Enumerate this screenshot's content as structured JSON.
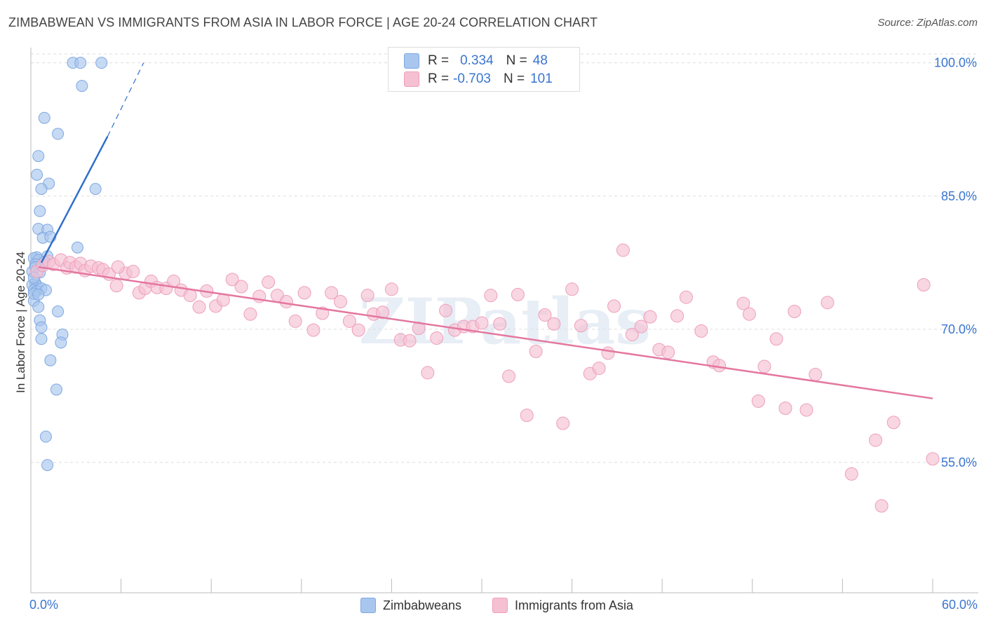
{
  "title": "ZIMBABWEAN VS IMMIGRANTS FROM ASIA IN LABOR FORCE | AGE 20-24 CORRELATION CHART",
  "source": "Source: ZipAtlas.com",
  "legend": {
    "rows": [
      {
        "r_label": "R =",
        "r_value": "0.334",
        "n_label": "N =",
        "n_value": "48"
      },
      {
        "r_label": "R =",
        "r_value": "-0.703",
        "n_label": "N =",
        "n_value": "101"
      }
    ]
  },
  "bottom_legend": [
    "Zimbabweans",
    "Immigrants from Asia"
  ],
  "x_axis_labels": {
    "min": "0.0%",
    "max": "60.0%"
  },
  "colors": {
    "blue_fill": "#a9c6ee",
    "blue_stroke": "#7ea8e0",
    "blue_line": "#2f6fcc",
    "pink_fill": "#f5c0d2",
    "pink_stroke": "#ee9fba",
    "pink_line": "#e4779f",
    "tick_label": "#3a75d0",
    "grid": "#dddddd"
  },
  "chart_data": {
    "type": "scatter",
    "xlabel": "",
    "ylabel": "In Labor Force | Age 20-24",
    "xlim": [
      0,
      60
    ],
    "ylim": [
      40,
      101
    ],
    "y_ticks": [
      {
        "value": 100,
        "label": "100.0%"
      },
      {
        "value": 85,
        "label": "85.0%"
      },
      {
        "value": 70,
        "label": "70.0%"
      },
      {
        "value": 55,
        "label": "55.0%"
      }
    ],
    "grid": true,
    "watermark": "ZIPatlas",
    "series": [
      {
        "name": "Zimbabweans",
        "r": 0.334,
        "n": 48,
        "trend": {
          "x1": 0.7,
          "y1": 77.5,
          "x2": 5.1,
          "y2": 91.7,
          "dash_to_x": 7.5,
          "dash_to_y": 100
        },
        "points": [
          [
            2.8,
            100
          ],
          [
            3.3,
            100
          ],
          [
            4.7,
            100
          ],
          [
            3.4,
            97.4
          ],
          [
            0.9,
            93.8
          ],
          [
            1.8,
            92
          ],
          [
            0.5,
            89.5
          ],
          [
            0.4,
            87.4
          ],
          [
            1.2,
            86.4
          ],
          [
            0.7,
            85.8
          ],
          [
            4.3,
            85.8
          ],
          [
            0.6,
            83.3
          ],
          [
            0.5,
            81.3
          ],
          [
            1.1,
            81.2
          ],
          [
            0.8,
            80.3
          ],
          [
            1.3,
            80.4
          ],
          [
            3.1,
            79.2
          ],
          [
            0.4,
            78.1
          ],
          [
            1.1,
            78.2
          ],
          [
            0.2,
            78.0
          ],
          [
            0.5,
            77.8
          ],
          [
            0.9,
            77.6
          ],
          [
            0.3,
            77.3
          ],
          [
            0.1,
            76.5
          ],
          [
            0.3,
            75.2
          ],
          [
            0.4,
            74.9
          ],
          [
            0.1,
            75.0
          ],
          [
            0.2,
            74.4
          ],
          [
            0.4,
            74.3
          ],
          [
            0.7,
            74.6
          ],
          [
            1.0,
            74.4
          ],
          [
            0.2,
            73.2
          ],
          [
            0.5,
            72.5
          ],
          [
            1.8,
            72.0
          ],
          [
            0.6,
            71.0
          ],
          [
            0.7,
            70.2
          ],
          [
            0.7,
            68.9
          ],
          [
            2.1,
            69.4
          ],
          [
            2.0,
            68.5
          ],
          [
            1.3,
            66.5
          ],
          [
            1.7,
            63.2
          ],
          [
            1.0,
            57.9
          ],
          [
            1.1,
            54.7
          ],
          [
            0.2,
            74.0
          ],
          [
            0.5,
            73.9
          ],
          [
            0.3,
            77.0
          ],
          [
            0.6,
            76.4
          ],
          [
            0.2,
            75.8
          ]
        ]
      },
      {
        "name": "Immigrants from Asia",
        "r": -0.703,
        "n": 101,
        "trend": {
          "x1": 0.5,
          "y1": 77.0,
          "x2": 60,
          "y2": 62.2
        },
        "points": [
          [
            0.4,
            76.5
          ],
          [
            0.8,
            77.2
          ],
          [
            1.2,
            77.6
          ],
          [
            1.5,
            77.3
          ],
          [
            2.0,
            77.8
          ],
          [
            2.4,
            76.9
          ],
          [
            2.6,
            77.5
          ],
          [
            3.0,
            77.0
          ],
          [
            3.3,
            77.4
          ],
          [
            3.6,
            76.6
          ],
          [
            4.0,
            77.1
          ],
          [
            4.5,
            76.9
          ],
          [
            4.8,
            76.7
          ],
          [
            5.2,
            76.2
          ],
          [
            5.7,
            74.9
          ],
          [
            6.3,
            76.3
          ],
          [
            6.8,
            76.5
          ],
          [
            7.2,
            74.1
          ],
          [
            7.6,
            74.6
          ],
          [
            8.0,
            75.4
          ],
          [
            8.4,
            74.7
          ],
          [
            9.0,
            74.6
          ],
          [
            9.5,
            75.4
          ],
          [
            10.0,
            74.4
          ],
          [
            10.6,
            73.8
          ],
          [
            11.2,
            72.5
          ],
          [
            11.7,
            74.3
          ],
          [
            12.3,
            72.6
          ],
          [
            12.8,
            73.3
          ],
          [
            13.4,
            75.6
          ],
          [
            14.0,
            74.8
          ],
          [
            14.6,
            71.7
          ],
          [
            15.2,
            73.7
          ],
          [
            15.8,
            75.3
          ],
          [
            16.4,
            73.8
          ],
          [
            17.0,
            73.1
          ],
          [
            17.6,
            70.9
          ],
          [
            18.2,
            74.1
          ],
          [
            18.8,
            69.9
          ],
          [
            19.4,
            71.8
          ],
          [
            20.0,
            74.1
          ],
          [
            20.6,
            73.1
          ],
          [
            21.2,
            70.9
          ],
          [
            21.8,
            69.9
          ],
          [
            22.4,
            73.8
          ],
          [
            22.8,
            71.7
          ],
          [
            23.4,
            71.9
          ],
          [
            24.0,
            74.5
          ],
          [
            24.6,
            68.8
          ],
          [
            25.2,
            68.7
          ],
          [
            25.8,
            70.1
          ],
          [
            26.4,
            65.1
          ],
          [
            27.0,
            69.0
          ],
          [
            27.6,
            72.1
          ],
          [
            28.2,
            69.9
          ],
          [
            28.8,
            70.3
          ],
          [
            29.4,
            70.3
          ],
          [
            30.0,
            70.7
          ],
          [
            30.6,
            73.8
          ],
          [
            31.2,
            70.6
          ],
          [
            31.8,
            64.7
          ],
          [
            32.4,
            73.9
          ],
          [
            33.0,
            60.3
          ],
          [
            33.6,
            67.5
          ],
          [
            34.2,
            71.6
          ],
          [
            34.8,
            70.6
          ],
          [
            35.4,
            59.4
          ],
          [
            36.0,
            74.5
          ],
          [
            36.6,
            70.4
          ],
          [
            37.2,
            65.0
          ],
          [
            37.8,
            65.6
          ],
          [
            38.4,
            67.3
          ],
          [
            38.8,
            72.6
          ],
          [
            39.4,
            78.9
          ],
          [
            40.0,
            69.4
          ],
          [
            40.6,
            70.3
          ],
          [
            41.2,
            71.4
          ],
          [
            41.8,
            67.7
          ],
          [
            42.4,
            67.4
          ],
          [
            43.0,
            71.5
          ],
          [
            43.6,
            73.6
          ],
          [
            44.6,
            69.8
          ],
          [
            45.4,
            66.3
          ],
          [
            45.8,
            65.9
          ],
          [
            47.4,
            72.9
          ],
          [
            47.8,
            71.7
          ],
          [
            48.4,
            61.9
          ],
          [
            48.8,
            65.8
          ],
          [
            49.6,
            68.9
          ],
          [
            50.2,
            61.1
          ],
          [
            50.8,
            72.0
          ],
          [
            51.6,
            60.9
          ],
          [
            52.2,
            64.9
          ],
          [
            53.0,
            73.0
          ],
          [
            54.6,
            53.7
          ],
          [
            56.2,
            57.5
          ],
          [
            56.6,
            50.1
          ],
          [
            57.4,
            59.5
          ],
          [
            59.4,
            75.0
          ],
          [
            60.0,
            55.4
          ],
          [
            5.8,
            77.0
          ]
        ]
      }
    ]
  }
}
